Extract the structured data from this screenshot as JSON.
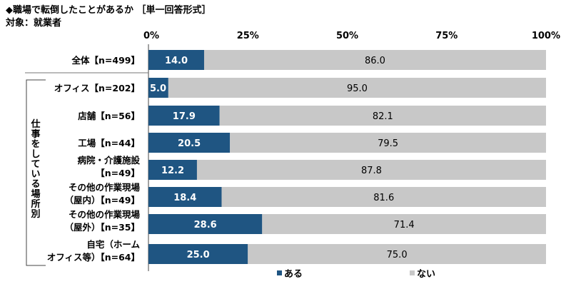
{
  "header": {
    "title": "◆職場で転倒したことがあるか ［単一回答形式］",
    "subtitle": "対象：就業者"
  },
  "chart_data": {
    "type": "bar",
    "stacked": true,
    "orientation": "horizontal",
    "xlim": [
      0,
      100
    ],
    "ticks": [
      "0%",
      "25%",
      "50%",
      "75%",
      "100%"
    ],
    "tick_values": [
      0,
      25,
      50,
      75,
      100
    ],
    "group_label": "仕事をしている場所別",
    "categories": [
      [
        "全体【n=499】"
      ],
      [
        "オフィス【n=202】"
      ],
      [
        "店舗【n=56】"
      ],
      [
        "工場【n=44】"
      ],
      [
        "病院・介護施設",
        "【n=49】"
      ],
      [
        "その他の作業現場",
        "（屋内）【n=49】"
      ],
      [
        "その他の作業現場",
        "（屋外）【n=35】"
      ],
      [
        "自宅（ホーム",
        "オフィス等）【n=64】"
      ]
    ],
    "series": [
      {
        "name": "ある",
        "color": "#1f5582",
        "values": [
          14.0,
          5.0,
          17.9,
          20.5,
          12.2,
          18.4,
          28.6,
          25.0
        ]
      },
      {
        "name": "ない",
        "color": "#c8c8c8",
        "values": [
          86.0,
          95.0,
          82.1,
          79.5,
          87.8,
          81.6,
          71.4,
          75.0
        ]
      }
    ],
    "legend_position": "bottom"
  }
}
